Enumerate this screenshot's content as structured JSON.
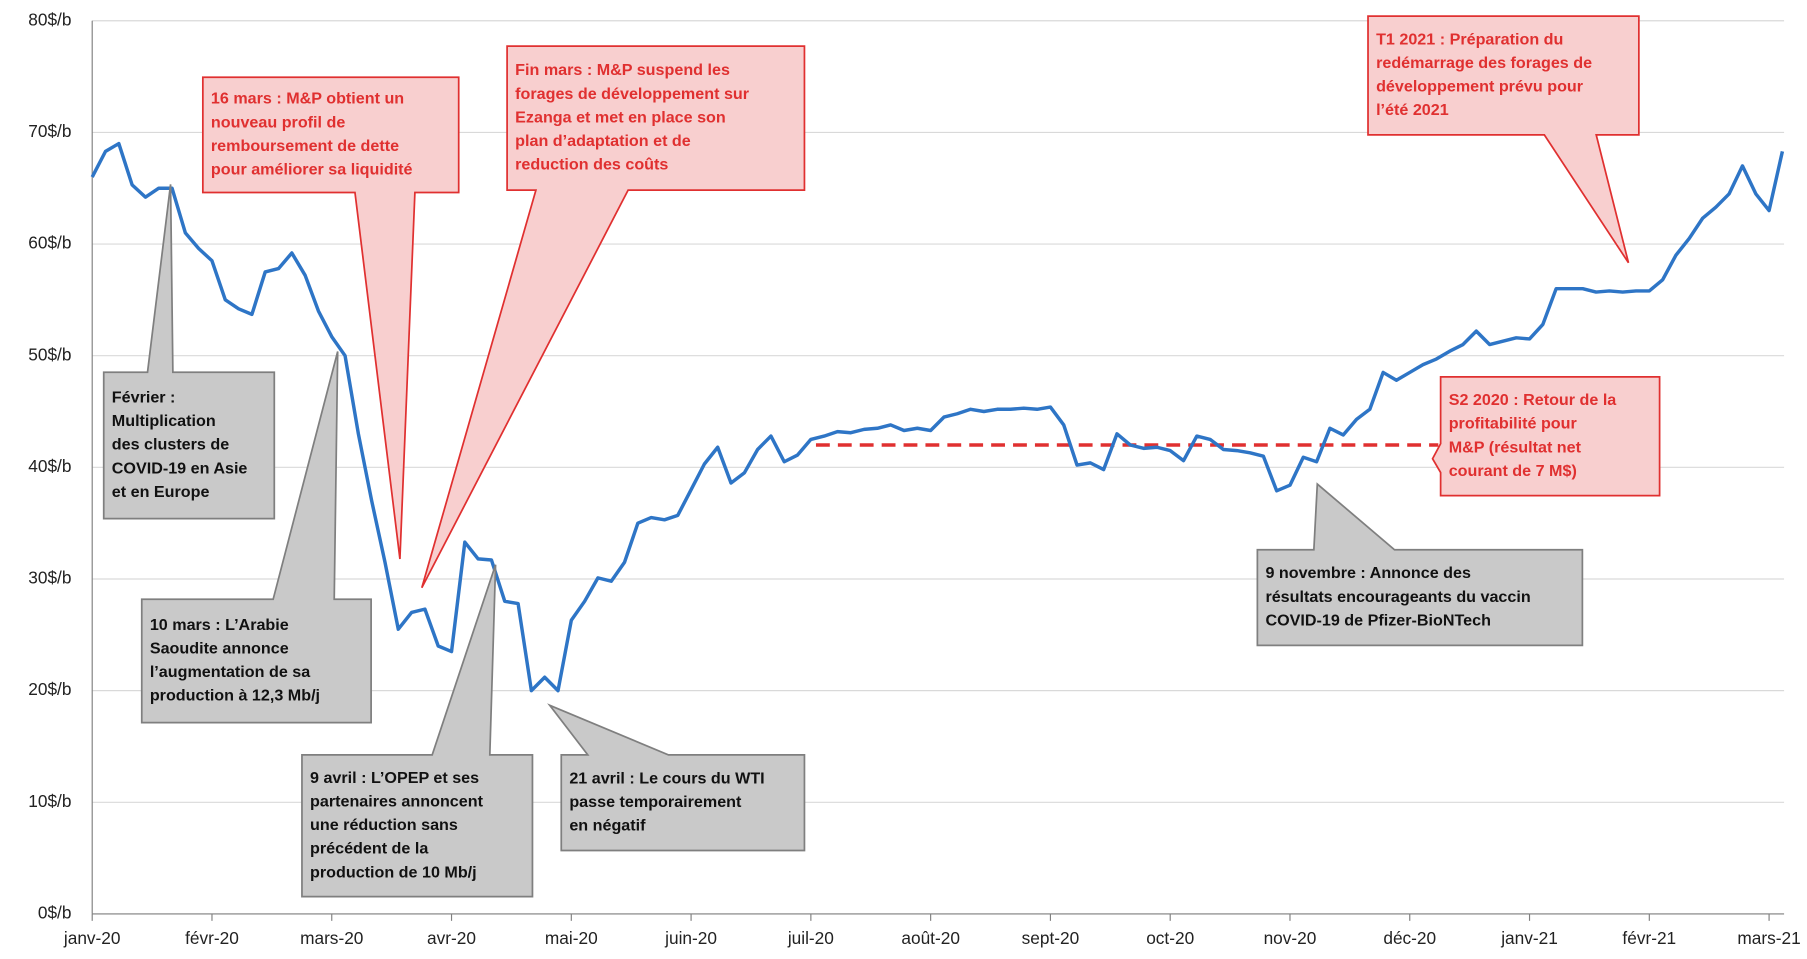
{
  "chart_data": {
    "type": "line",
    "categories": [
      "janv-20",
      null,
      null,
      null,
      null,
      null,
      null,
      null,
      null,
      "févr-20",
      null,
      null,
      null,
      null,
      null,
      null,
      null,
      null,
      "mars-20",
      null,
      null,
      null,
      null,
      null,
      null,
      null,
      null,
      "avr-20",
      null,
      null,
      null,
      null,
      null,
      null,
      null,
      null,
      "mai-20",
      null,
      null,
      null,
      null,
      null,
      null,
      null,
      null,
      "juin-20",
      null,
      null,
      null,
      null,
      null,
      null,
      null,
      null,
      "juil-20",
      null,
      null,
      null,
      null,
      null,
      null,
      null,
      null,
      "août-20",
      null,
      null,
      null,
      null,
      null,
      null,
      null,
      null,
      "sept-20",
      null,
      null,
      null,
      null,
      null,
      null,
      null,
      null,
      "oct-20",
      null,
      null,
      null,
      null,
      null,
      null,
      null,
      null,
      "nov-20",
      null,
      null,
      null,
      null,
      null,
      null,
      null,
      null,
      "déc-20",
      null,
      null,
      null,
      null,
      null,
      null,
      null,
      null,
      "janv-21",
      null,
      null,
      null,
      null,
      null,
      null,
      null,
      null,
      "févr-21",
      null,
      null,
      null,
      null,
      null,
      null,
      null,
      null,
      "mars-21",
      null
    ],
    "series": [
      {
        "color": "#2e75c6",
        "values": [
          66,
          68.3,
          69,
          65.3,
          64.2,
          65,
          65,
          61,
          59.6,
          58.5,
          55,
          54.2,
          53.7,
          57.5,
          57.8,
          59.2,
          57.2,
          54,
          51.7,
          50,
          43,
          37,
          31.5,
          25.5,
          27,
          27.3,
          24,
          23.5,
          33.3,
          31.8,
          31.7,
          28,
          27.8,
          20,
          21.2,
          20,
          26.3,
          28,
          30.1,
          29.8,
          31.5,
          35,
          35.5,
          35.3,
          35.7,
          38,
          40.3,
          41.8,
          38.6,
          39.5,
          41.6,
          42.8,
          40.5,
          41.1,
          42.5,
          42.8,
          43.2,
          43.1,
          43.4,
          43.5,
          43.8,
          43.3,
          43.5,
          43.3,
          44.5,
          44.8,
          45.2,
          45,
          45.2,
          45.2,
          45.3,
          45.2,
          45.4,
          43.8,
          40.2,
          40.4,
          39.8,
          43,
          42,
          41.7,
          41.8,
          41.5,
          40.6,
          42.8,
          42.5,
          41.6,
          41.5,
          41.3,
          41,
          37.9,
          38.4,
          40.9,
          40.5,
          43.5,
          42.9,
          44.3,
          45.2,
          48.5,
          47.8,
          48.5,
          49.2,
          49.7,
          50.4,
          51,
          52.2,
          51,
          51.3,
          51.6,
          51.5,
          52.8,
          56,
          56,
          56,
          55.7,
          55.8,
          55.7,
          55.8,
          55.8,
          56.8,
          59,
          60.5,
          62.3,
          63.3,
          64.5,
          67,
          64.5,
          63,
          68.3
        ]
      }
    ],
    "ylim": [
      0,
      80
    ],
    "yticks": [
      {
        "value": 0,
        "label": "0$/b"
      },
      {
        "value": 10,
        "label": "10$/b"
      },
      {
        "value": 20,
        "label": "20$/b"
      },
      {
        "value": 30,
        "label": "30$/b"
      },
      {
        "value": 40,
        "label": "40$/b"
      },
      {
        "value": 50,
        "label": "50$/b"
      },
      {
        "value": 60,
        "label": "60$/b"
      },
      {
        "value": 70,
        "label": "70$/b"
      },
      {
        "value": 80,
        "label": "80$/b"
      }
    ],
    "grid": true,
    "reference_line": {
      "value": 42,
      "color": "#e03030",
      "dashed": true
    },
    "annotations": [
      {
        "style": "gray",
        "lines": [
          "Février :",
          "Multiplication",
          "des clusters de",
          "COVID-19 en Asie",
          "et en Europe"
        ]
      },
      {
        "style": "gray",
        "lines": [
          "10 mars : L’Arabie",
          "Saoudite annonce",
          "l’augmentation de sa",
          "production à 12,3 Mb/j"
        ]
      },
      {
        "style": "gray",
        "lines": [
          "9 avril : L’OPEP et ses",
          "partenaires annoncent",
          "une réduction sans",
          "précédent de la",
          "production de 10 Mb/j"
        ]
      },
      {
        "style": "gray",
        "lines": [
          "21 avril : Le cours du WTI",
          "passe temporairement",
          "en négatif"
        ]
      },
      {
        "style": "gray",
        "lines": [
          "9 novembre : Annonce des",
          "résultats encourageants du vaccin",
          "COVID-19 de Pfizer-BioNTech"
        ]
      },
      {
        "style": "red",
        "lines": [
          "16 mars : M&P obtient un",
          "nouveau profil de",
          "remboursement de dette",
          "pour améliorer sa liquidité"
        ]
      },
      {
        "style": "red",
        "lines": [
          "Fin mars : M&P suspend les",
          "forages de développement sur",
          "Ezanga et met en place son",
          "plan d’adaptation et de",
          "reduction des coûts"
        ]
      },
      {
        "style": "red",
        "lines": [
          "T1 2021 : Préparation du",
          "redémarrage des forages de",
          "développement prévu pour",
          "l’été 2021"
        ]
      },
      {
        "style": "red",
        "lines": [
          "S2 2020 : Retour de la",
          "profitabilité pour",
          "M&P (résultat net",
          "courant de 7 M$)"
        ]
      }
    ]
  }
}
